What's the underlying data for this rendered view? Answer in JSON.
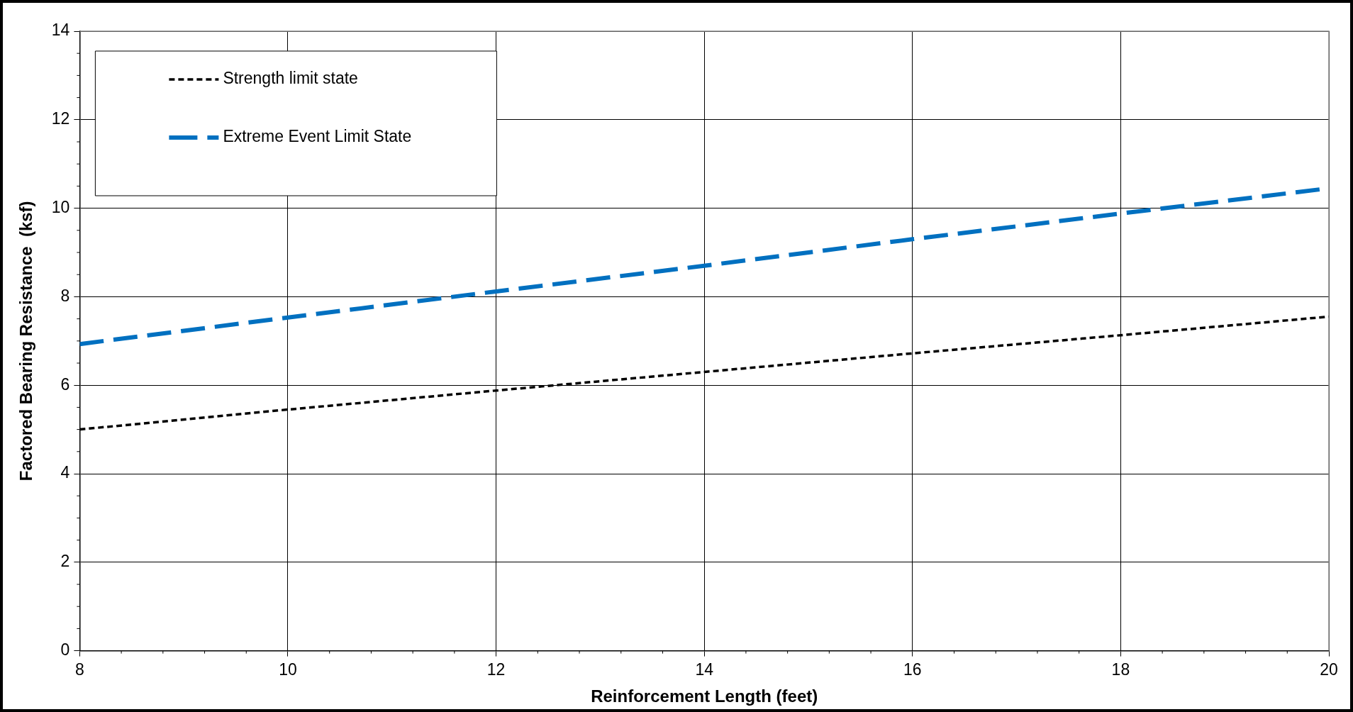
{
  "chart_data": {
    "type": "line",
    "xlabel": "Reinforcement Length (feet)",
    "ylabel": "Factored Bearing Resistance  (ksf)",
    "x": [
      8,
      10,
      12,
      14,
      16,
      18,
      20
    ],
    "series": [
      {
        "name": "Strength limit state",
        "color": "#000000",
        "line_style": "dotted",
        "values": [
          5.0,
          5.45,
          5.88,
          6.3,
          6.72,
          7.13,
          7.55
        ]
      },
      {
        "name": "Extreme Event Limit State",
        "color": "#0070c0",
        "line_style": "dashed",
        "values": [
          6.93,
          7.53,
          8.12,
          8.7,
          9.3,
          9.88,
          10.45
        ]
      }
    ],
    "xlim": [
      8,
      20
    ],
    "xticks": [
      8,
      10,
      12,
      14,
      16,
      18,
      20
    ],
    "ylim": [
      0,
      14
    ],
    "yticks": [
      0,
      2,
      4,
      6,
      8,
      10,
      12,
      14
    ],
    "grid": true,
    "legend": "top left",
    "marker": "none"
  }
}
